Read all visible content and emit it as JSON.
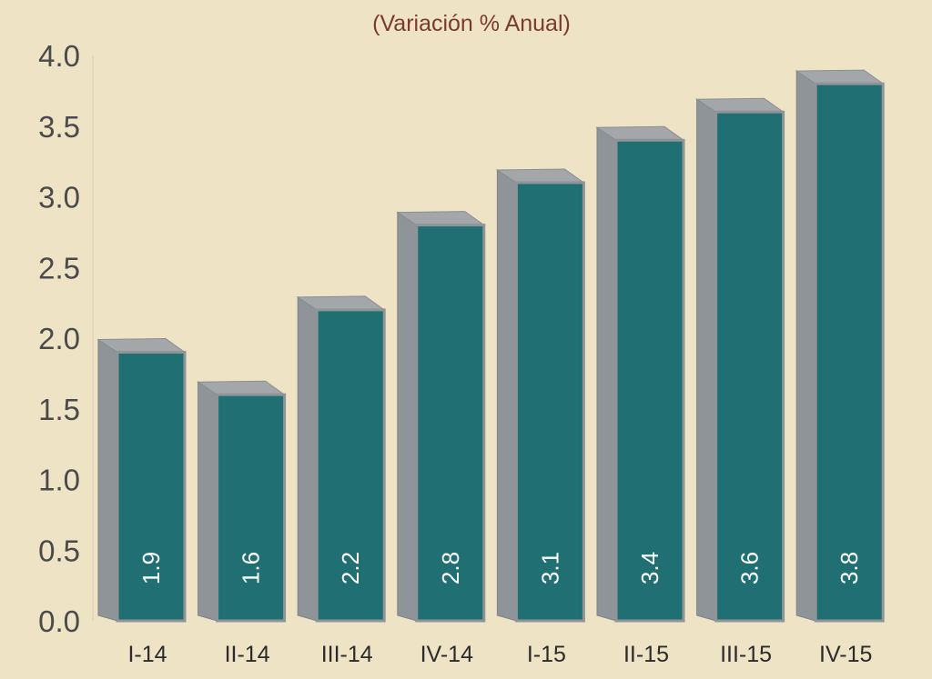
{
  "chart_data": {
    "type": "bar",
    "title": "",
    "subtitle": "(Variación % Anual)",
    "xlabel": "",
    "ylabel": "",
    "categories": [
      "I-14",
      "II-14",
      "III-14",
      "IV-14",
      "I-15",
      "II-15",
      "III-15",
      "IV-15"
    ],
    "values": [
      1.9,
      1.6,
      2.2,
      2.8,
      3.1,
      3.4,
      3.6,
      3.8
    ],
    "data_labels": [
      "1.9",
      "1.6",
      "2.2",
      "2.8",
      "3.1",
      "3.4",
      "3.6",
      "3.8"
    ],
    "ylim": [
      0,
      4.0
    ],
    "yticks": [
      "0.0",
      "0.5",
      "1.0",
      "1.5",
      "2.0",
      "2.5",
      "3.0",
      "3.5",
      "4.0"
    ],
    "grid": false,
    "legend": "none",
    "colors": {
      "background": "#efe3c6",
      "bar_front": "#1f6f73",
      "bar_side": "#8f9498",
      "bar_top": "#a3a7aa",
      "subtitle": "#7a3b2e"
    }
  }
}
